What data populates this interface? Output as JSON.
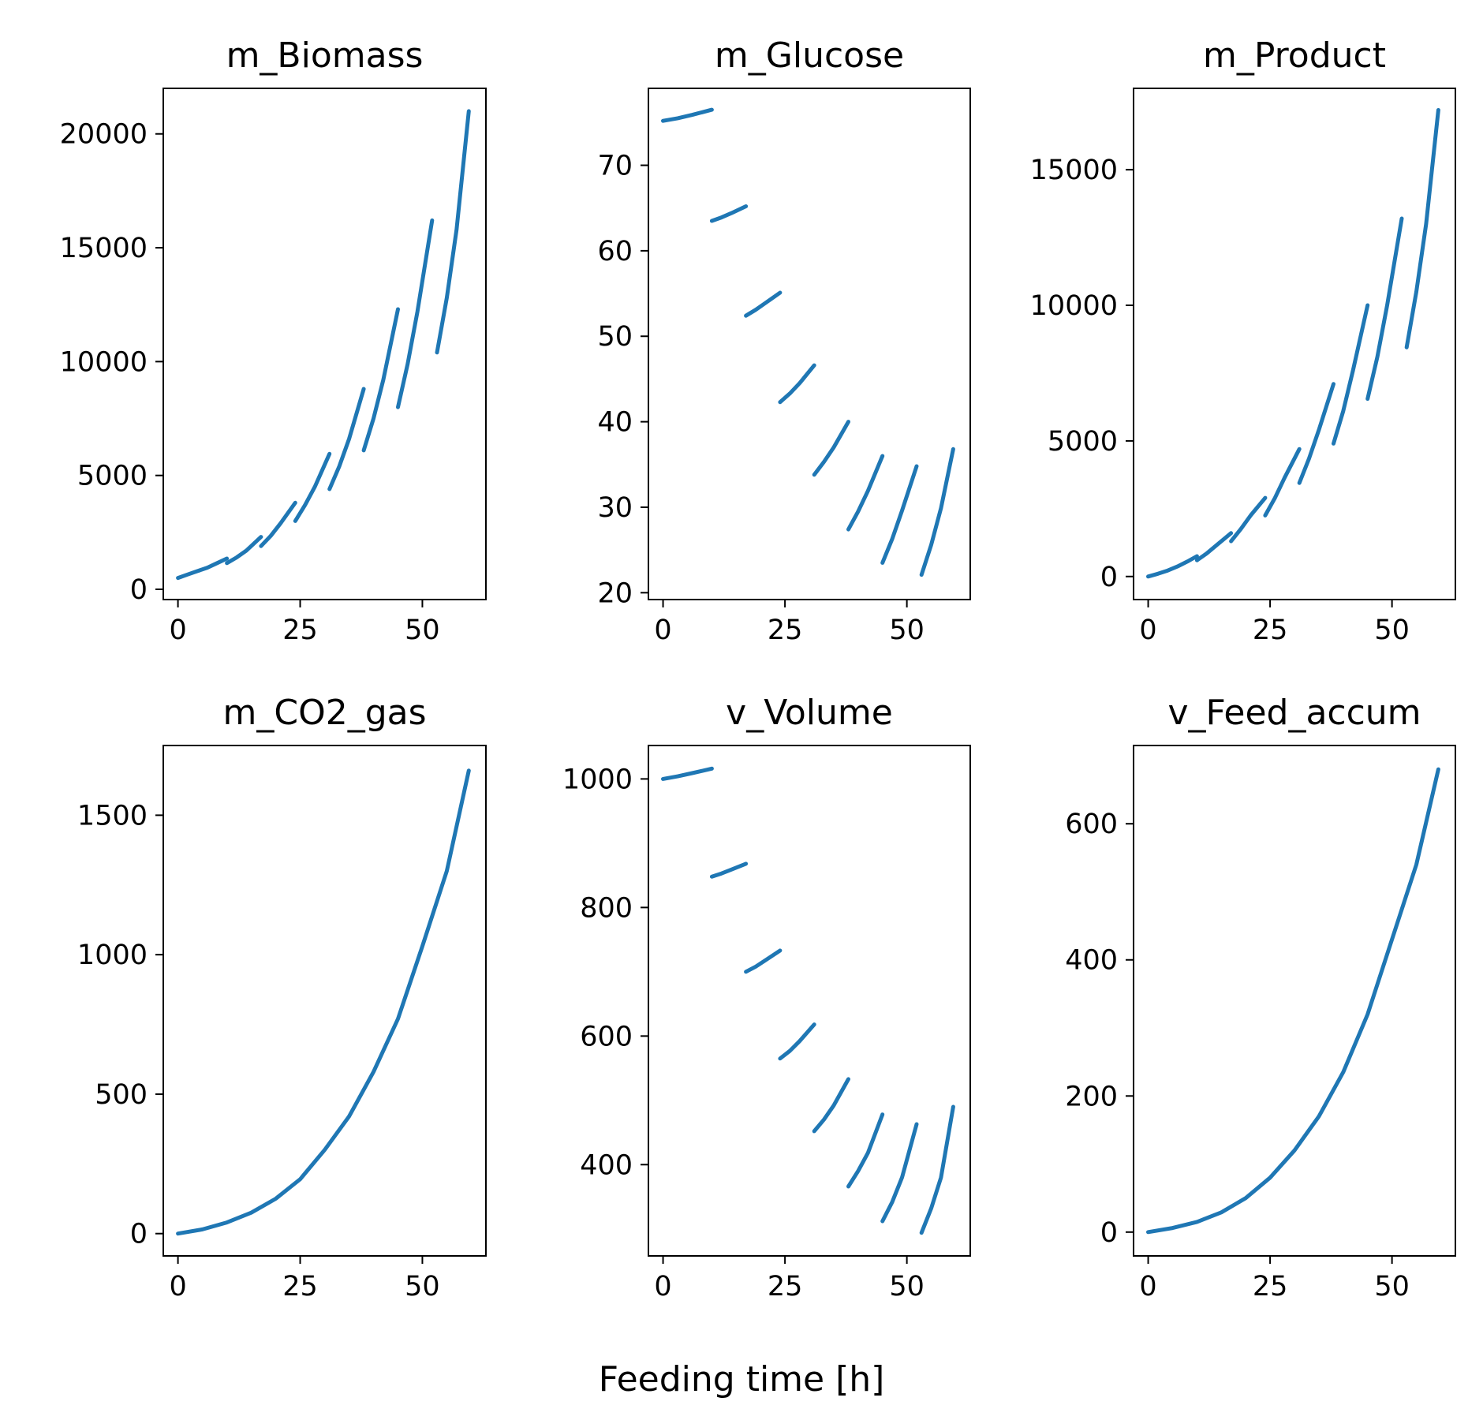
{
  "figure": {
    "xlabel": "Feeding time [h]",
    "line_color": "#1f77b4"
  },
  "chart_data": [
    {
      "type": "line",
      "title": "m_Biomass",
      "xlabel": "",
      "ylabel": "",
      "xlim": [
        -3,
        63
      ],
      "ylim": [
        -450,
        22000
      ],
      "xticks": [
        0,
        25,
        50
      ],
      "xtick_labels": [
        "0",
        "25",
        "50"
      ],
      "yticks": [
        0,
        5000,
        10000,
        15000,
        20000
      ],
      "ytick_labels": [
        "0",
        "5000",
        "10000",
        "15000",
        "20000"
      ],
      "series": [
        {
          "x": [
            0,
            2,
            4,
            6,
            8,
            10
          ],
          "y": [
            500,
            650,
            800,
            950,
            1150,
            1350
          ]
        },
        {
          "x": [
            10,
            12,
            14,
            17
          ],
          "y": [
            1150,
            1400,
            1700,
            2300
          ]
        },
        {
          "x": [
            17,
            19,
            21,
            24
          ],
          "y": [
            1900,
            2350,
            2900,
            3800
          ]
        },
        {
          "x": [
            24,
            26,
            28,
            31
          ],
          "y": [
            3000,
            3700,
            4500,
            5950
          ]
        },
        {
          "x": [
            31,
            33,
            35,
            38
          ],
          "y": [
            4400,
            5400,
            6600,
            8800
          ]
        },
        {
          "x": [
            38,
            40,
            42,
            45
          ],
          "y": [
            6100,
            7500,
            9200,
            12300
          ]
        },
        {
          "x": [
            45,
            47,
            49,
            52
          ],
          "y": [
            8000,
            9900,
            12200,
            16200
          ]
        },
        {
          "x": [
            53,
            55,
            57,
            59.5
          ],
          "y": [
            10400,
            12800,
            15800,
            21000
          ]
        }
      ]
    },
    {
      "type": "line",
      "title": "m_Glucose",
      "xlabel": "",
      "ylabel": "",
      "xlim": [
        -3,
        63
      ],
      "ylim": [
        19.2,
        79
      ],
      "xticks": [
        0,
        25,
        50
      ],
      "xtick_labels": [
        "0",
        "25",
        "50"
      ],
      "yticks": [
        20,
        30,
        40,
        50,
        60,
        70
      ],
      "ytick_labels": [
        "20",
        "30",
        "40",
        "50",
        "60",
        "70"
      ],
      "series": [
        {
          "x": [
            0,
            3,
            6,
            10
          ],
          "y": [
            75.2,
            75.5,
            75.9,
            76.5
          ]
        },
        {
          "x": [
            10,
            12,
            14,
            17
          ],
          "y": [
            63.5,
            63.9,
            64.4,
            65.2
          ]
        },
        {
          "x": [
            17,
            19,
            21,
            24
          ],
          "y": [
            52.4,
            53.1,
            53.9,
            55.1
          ]
        },
        {
          "x": [
            24,
            26,
            28,
            31
          ],
          "y": [
            42.3,
            43.3,
            44.5,
            46.6
          ]
        },
        {
          "x": [
            31,
            33,
            35,
            38
          ],
          "y": [
            33.8,
            35.3,
            37.0,
            40.0
          ]
        },
        {
          "x": [
            38,
            40,
            42,
            45
          ],
          "y": [
            27.4,
            29.5,
            31.9,
            36.0
          ]
        },
        {
          "x": [
            45,
            47,
            49,
            52
          ],
          "y": [
            23.5,
            26.3,
            29.6,
            34.8
          ]
        },
        {
          "x": [
            53,
            55,
            57,
            59.5
          ],
          "y": [
            22.1,
            25.6,
            29.9,
            36.8
          ]
        }
      ]
    },
    {
      "type": "line",
      "title": "m_Product",
      "xlabel": "",
      "ylabel": "",
      "xlim": [
        -3,
        63
      ],
      "ylim": [
        -850,
        18000
      ],
      "xticks": [
        0,
        25,
        50
      ],
      "xtick_labels": [
        "0",
        "25",
        "50"
      ],
      "yticks": [
        0,
        5000,
        10000,
        15000
      ],
      "ytick_labels": [
        "0",
        "5000",
        "10000",
        "15000"
      ],
      "series": [
        {
          "x": [
            0,
            2,
            4,
            6,
            8,
            10
          ],
          "y": [
            0,
            100,
            220,
            370,
            550,
            750
          ]
        },
        {
          "x": [
            10,
            12,
            14,
            17
          ],
          "y": [
            600,
            850,
            1150,
            1600
          ]
        },
        {
          "x": [
            17,
            19,
            21,
            24
          ],
          "y": [
            1300,
            1750,
            2250,
            2900
          ]
        },
        {
          "x": [
            24,
            26,
            28,
            31
          ],
          "y": [
            2250,
            2900,
            3650,
            4700
          ]
        },
        {
          "x": [
            31,
            33,
            35,
            38
          ],
          "y": [
            3450,
            4350,
            5400,
            7100
          ]
        },
        {
          "x": [
            38,
            40,
            42,
            45
          ],
          "y": [
            4900,
            6100,
            7600,
            10000
          ]
        },
        {
          "x": [
            45,
            47,
            49,
            52
          ],
          "y": [
            6550,
            8100,
            10000,
            13200
          ]
        },
        {
          "x": [
            53,
            55,
            57,
            59.5
          ],
          "y": [
            8450,
            10500,
            13000,
            17200
          ]
        }
      ]
    },
    {
      "type": "line",
      "title": "m_CO2_gas",
      "xlabel": "",
      "ylabel": "",
      "xlim": [
        -3,
        63
      ],
      "ylim": [
        -80,
        1750
      ],
      "xticks": [
        0,
        25,
        50
      ],
      "xtick_labels": [
        "0",
        "25",
        "50"
      ],
      "yticks": [
        0,
        500,
        1000,
        1500
      ],
      "ytick_labels": [
        "0",
        "500",
        "1000",
        "1500"
      ],
      "series": [
        {
          "x": [
            0,
            5,
            10,
            15,
            20,
            25,
            30,
            35,
            40,
            45,
            50,
            55,
            59.5
          ],
          "y": [
            0,
            15,
            40,
            75,
            125,
            195,
            300,
            420,
            580,
            770,
            1030,
            1300,
            1660
          ]
        }
      ]
    },
    {
      "type": "line",
      "title": "v_Volume",
      "xlabel": "",
      "ylabel": "",
      "xlim": [
        -3,
        63
      ],
      "ylim": [
        258,
        1052
      ],
      "xticks": [
        0,
        25,
        50
      ],
      "xtick_labels": [
        "0",
        "25",
        "50"
      ],
      "yticks": [
        400,
        600,
        800,
        1000
      ],
      "ytick_labels": [
        "400",
        "600",
        "800",
        "1000"
      ],
      "series": [
        {
          "x": [
            0,
            3,
            6,
            10
          ],
          "y": [
            1000,
            1004,
            1009,
            1016
          ]
        },
        {
          "x": [
            10,
            12,
            14,
            17
          ],
          "y": [
            848,
            853,
            859,
            868
          ]
        },
        {
          "x": [
            17,
            19,
            21,
            24
          ],
          "y": [
            700,
            708,
            718,
            733
          ]
        },
        {
          "x": [
            24,
            26,
            28,
            31
          ],
          "y": [
            565,
            577,
            592,
            618
          ]
        },
        {
          "x": [
            31,
            33,
            35,
            38
          ],
          "y": [
            452,
            470,
            492,
            533
          ]
        },
        {
          "x": [
            38,
            40,
            42,
            45
          ],
          "y": [
            366,
            390,
            418,
            478
          ]
        },
        {
          "x": [
            45,
            47,
            49,
            52
          ],
          "y": [
            312,
            342,
            380,
            463
          ]
        },
        {
          "x": [
            53,
            55,
            57,
            59.5
          ],
          "y": [
            294,
            332,
            380,
            490
          ]
        }
      ]
    },
    {
      "type": "line",
      "title": "v_Feed_accum",
      "xlabel": "",
      "ylabel": "",
      "xlim": [
        -3,
        63
      ],
      "ylim": [
        -35,
        715
      ],
      "xticks": [
        0,
        25,
        50
      ],
      "xtick_labels": [
        "0",
        "25",
        "50"
      ],
      "yticks": [
        0,
        200,
        400,
        600
      ],
      "ytick_labels": [
        "0",
        "200",
        "400",
        "600"
      ],
      "series": [
        {
          "x": [
            0,
            5,
            10,
            15,
            20,
            25,
            30,
            35,
            40,
            45,
            50,
            55,
            59.5
          ],
          "y": [
            0,
            6,
            15,
            29,
            50,
            80,
            120,
            170,
            235,
            320,
            430,
            540,
            680
          ]
        }
      ]
    }
  ]
}
